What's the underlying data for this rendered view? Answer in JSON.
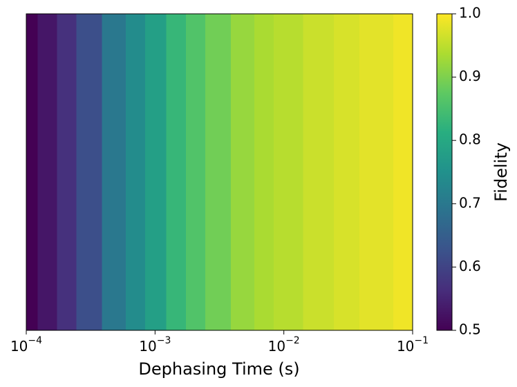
{
  "chart_data": {
    "type": "heatmap",
    "xlabel": "Dephasing Time (s)",
    "colorbar_label": "Fidelity",
    "colormap": "viridis",
    "xscale": "log",
    "x": [
      0.0001,
      0.00015,
      0.0002,
      0.0003,
      0.0005,
      0.0007,
      0.001,
      0.0015,
      0.002,
      0.003,
      0.005,
      0.007,
      0.01,
      0.02,
      0.03,
      0.05,
      0.1
    ],
    "values": [
      0.5,
      0.53,
      0.57,
      0.62,
      0.7,
      0.74,
      0.78,
      0.83,
      0.86,
      0.89,
      0.92,
      0.935,
      0.945,
      0.96,
      0.97,
      0.98,
      0.99
    ],
    "xlim": [
      0.0001,
      0.1
    ],
    "xticks": [
      {
        "value": 0.0001,
        "label": "10−4"
      },
      {
        "value": 0.001,
        "label": "10−3"
      },
      {
        "value": 0.01,
        "label": "10−2"
      },
      {
        "value": 0.1,
        "label": "10−1"
      }
    ],
    "clim": [
      0.5,
      1
    ],
    "cticks": [
      0.5,
      0.6,
      0.7,
      0.8,
      0.9,
      {
        "value": 1,
        "label": "1.0"
      }
    ]
  }
}
